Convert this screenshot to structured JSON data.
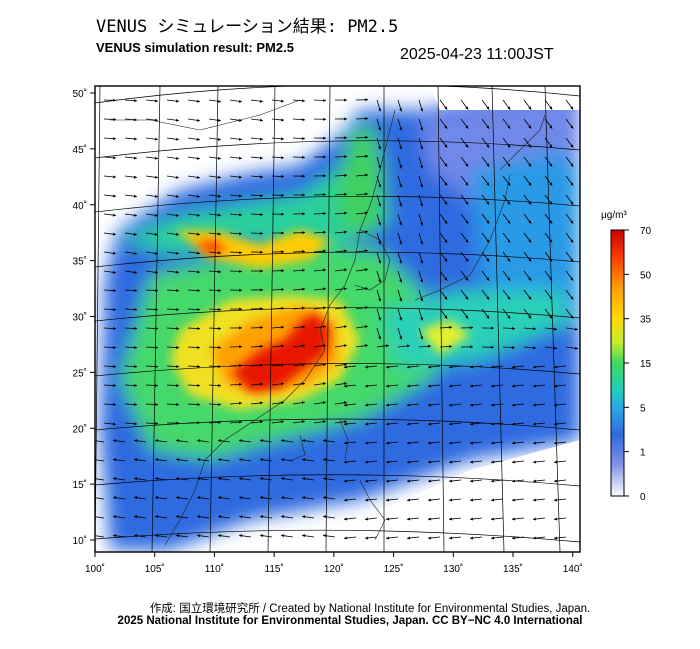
{
  "header": {
    "title_jp": "VENUS シミュレーション結果: PM2.5",
    "title_en": "VENUS simulation result: PM2.5",
    "timestamp": "2025-04-23 11:00JST"
  },
  "footer": {
    "credit_line": "作成: 国立環境研究所 / Created by National Institute for Environmental Studies, Japan.",
    "copyright_line": "2025 National Institute for Environmental Studies, Japan. CC BY−NC 4.0 International"
  },
  "colorbar": {
    "unit": "μg/m³",
    "ticks": [
      "70",
      "50",
      "35",
      "15",
      "5",
      "1",
      "0"
    ],
    "stops": [
      "#cc0000",
      "#ff6a00",
      "#ffc400",
      "#e6ef2a",
      "#6fe06a",
      "#1fd0b0",
      "#2aa6e8",
      "#2f5fe0",
      "#6a78e6",
      "#ffffff"
    ]
  },
  "chart_data": {
    "type": "heatmap",
    "variable": "PM2.5",
    "x_ticks": [
      "100˚",
      "105˚",
      "110˚",
      "115˚",
      "120˚",
      "125˚",
      "130˚",
      "135˚",
      "140˚"
    ],
    "y_ticks": [
      "50˚",
      "45˚",
      "40˚",
      "35˚",
      "30˚",
      "25˚",
      "20˚",
      "15˚",
      "10˚"
    ],
    "xlim": [
      100,
      141
    ],
    "ylim": [
      9,
      50
    ],
    "scale_ticks": [
      0,
      1,
      5,
      15,
      35,
      50,
      70
    ],
    "overlays": [
      "wind vectors",
      "coastlines",
      "lat/lon grid"
    ],
    "hotspots": [
      {
        "lon": 114,
        "lat": 24,
        "level": "70+"
      },
      {
        "lon": 118,
        "lat": 27.5,
        "level": "70+"
      },
      {
        "lon": 110,
        "lat": 35,
        "level": "50"
      },
      {
        "lon": 108,
        "lat": 37,
        "level": "35"
      }
    ]
  }
}
